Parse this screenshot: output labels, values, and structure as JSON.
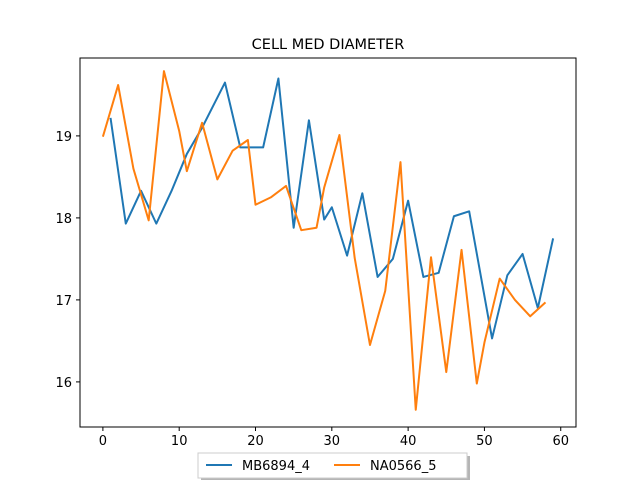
{
  "chart_data": {
    "type": "line",
    "title": "CELL MED DIAMETER",
    "xlabel": "",
    "ylabel": "",
    "xlim": [
      -3,
      62
    ],
    "ylim": [
      15.45,
      19.95
    ],
    "xticks": [
      0,
      10,
      20,
      30,
      40,
      50,
      60
    ],
    "yticks": [
      16,
      17,
      18,
      19
    ],
    "xtick_labels": [
      "0",
      "10",
      "20",
      "30",
      "40",
      "50",
      "60"
    ],
    "ytick_labels": [
      "16",
      "17",
      "18",
      "19"
    ],
    "grid": false,
    "legend_position": "bottom-center",
    "series": [
      {
        "name": "MB6894_4",
        "color": "#1f77b4",
        "x": [
          1,
          3,
          5,
          7,
          9,
          11,
          13,
          16,
          18,
          21,
          23,
          25,
          27,
          29,
          30,
          32,
          34,
          36,
          38,
          40,
          42,
          44,
          46,
          48,
          51,
          53,
          55,
          57,
          59
        ],
        "y": [
          19.22,
          17.93,
          18.33,
          17.93,
          18.33,
          18.78,
          19.1,
          19.65,
          18.86,
          18.86,
          19.7,
          17.88,
          19.19,
          17.98,
          18.13,
          17.54,
          18.3,
          17.28,
          17.5,
          18.21,
          17.28,
          17.33,
          18.02,
          18.08,
          16.53,
          17.3,
          17.56,
          16.9,
          17.75
        ]
      },
      {
        "name": "NA0566_5",
        "color": "#ff7f0e",
        "x": [
          0,
          2,
          4,
          6,
          8,
          10,
          11,
          13,
          15,
          17,
          19,
          20,
          22,
          24,
          26,
          28,
          29,
          31,
          33,
          35,
          37,
          39,
          41,
          43,
          45,
          47,
          49,
          50,
          52,
          54,
          56,
          58
        ],
        "y": [
          18.99,
          19.62,
          18.6,
          17.97,
          19.79,
          19.06,
          18.57,
          19.16,
          18.47,
          18.82,
          18.95,
          18.16,
          18.25,
          18.39,
          17.85,
          17.88,
          18.37,
          19.01,
          17.51,
          16.45,
          17.11,
          18.68,
          15.66,
          17.52,
          16.12,
          17.61,
          15.98,
          16.48,
          17.26,
          17.0,
          16.8,
          16.97
        ]
      }
    ]
  }
}
